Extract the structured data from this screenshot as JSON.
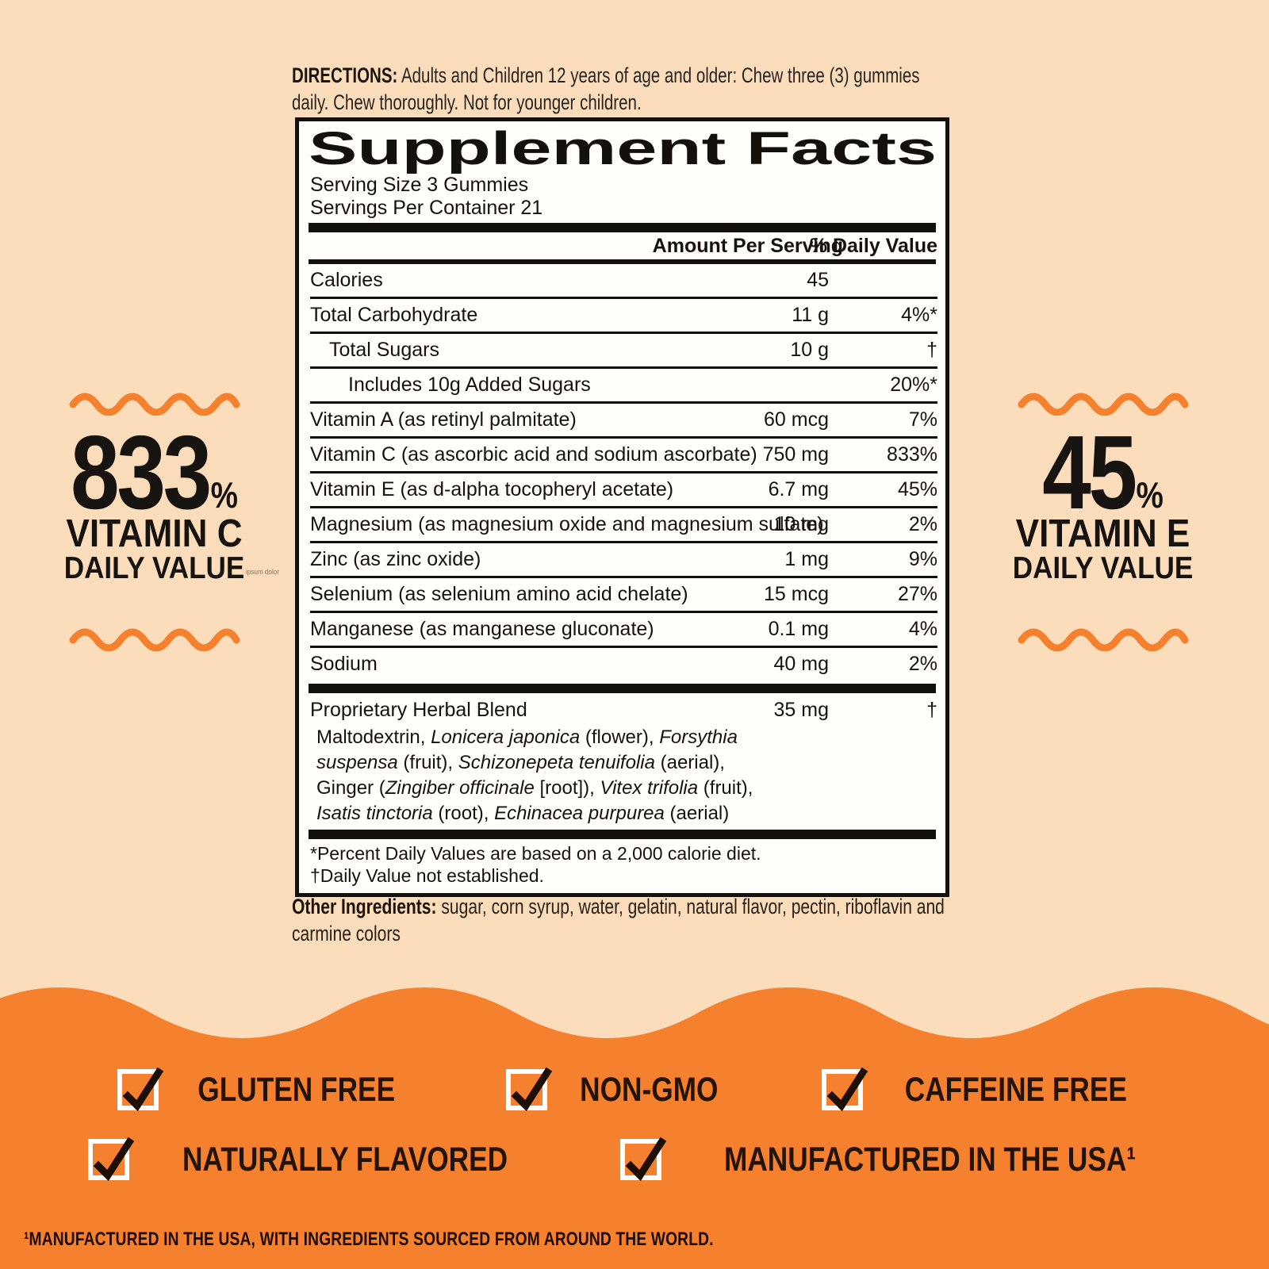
{
  "page": {
    "background_color": "#FBDDBB",
    "accent_color": "#F5812E",
    "ink_color": "#14100C"
  },
  "directions": {
    "label": "DIRECTIONS:",
    "text": " Adults and Children 12 years of age and older: Chew three (3) gummies daily. Chew thoroughly. Not for younger children."
  },
  "supplement_facts": {
    "title": "Supplement Facts",
    "serving_size": "Serving Size 3 Gummies",
    "servings_per_container": "Servings Per Container 21",
    "col_amount": "Amount Per Serving",
    "col_dv": "% Daily Value",
    "rows": [
      {
        "name": "Calories",
        "amount": "45",
        "dv": "",
        "indent": 0
      },
      {
        "name": "Total Carbohydrate",
        "amount": "11 g",
        "dv": "4%*",
        "indent": 0
      },
      {
        "name": "Total Sugars",
        "amount": "10 g",
        "dv": "†",
        "indent": 1
      },
      {
        "name": "Includes 10g Added Sugars",
        "amount": "",
        "dv": "20%*",
        "indent": 2
      },
      {
        "name": "Vitamin A (as retinyl palmitate)",
        "amount": "60 mcg",
        "dv": "7%",
        "indent": 0
      },
      {
        "name": "Vitamin C (as ascorbic acid and sodium ascorbate)",
        "amount": "750 mg",
        "dv": "833%",
        "indent": 0
      },
      {
        "name": "Vitamin E (as d-alpha tocopheryl acetate)",
        "amount": "6.7 mg",
        "dv": "45%",
        "indent": 0
      },
      {
        "name": "Magnesium (as magnesium oxide and magnesium sulfate)",
        "amount": "10 mg",
        "dv": "2%",
        "indent": 0
      },
      {
        "name": "Zinc (as zinc oxide)",
        "amount": "1 mg",
        "dv": "9%",
        "indent": 0
      },
      {
        "name": "Selenium (as selenium amino acid chelate)",
        "amount": "15 mcg",
        "dv": "27%",
        "indent": 0
      },
      {
        "name": "Manganese (as manganese gluconate)",
        "amount": "0.1 mg",
        "dv": "4%",
        "indent": 0
      },
      {
        "name": "Sodium",
        "amount": "40 mg",
        "dv": "2%",
        "indent": 0
      }
    ],
    "blend": {
      "name": "Proprietary Herbal Blend",
      "amount": "35 mg",
      "dv": "†",
      "ingredients": [
        {
          "t": "Maltodextrin, "
        },
        {
          "t": "Lonicera japonica",
          "i": true
        },
        {
          "t": " (flower), "
        },
        {
          "t": "Forsythia suspensa",
          "i": true
        },
        {
          "t": " (fruit), "
        },
        {
          "t": "Schizonepeta tenuifolia",
          "i": true
        },
        {
          "t": " (aerial), Ginger ("
        },
        {
          "t": "Zingiber officinale",
          "i": true
        },
        {
          "t": " [root]), "
        },
        {
          "t": "Vitex trifolia",
          "i": true
        },
        {
          "t": " (fruit), "
        },
        {
          "t": "Isatis tinctoria",
          "i": true
        },
        {
          "t": " (root), "
        },
        {
          "t": "Echinacea purpurea",
          "i": true
        },
        {
          "t": " (aerial)"
        }
      ]
    },
    "footnotes": [
      "*Percent Daily Values are based on a 2,000 calorie diet.",
      "†Daily Value not established."
    ]
  },
  "other_ingredients": {
    "label": "Other Ingredients:",
    "text": " sugar, corn syrup, water, gelatin, natural flavor, pectin, riboflavin and carmine colors"
  },
  "callout_left": {
    "value": "833",
    "pct": "%",
    "line1": "VITAMIN C",
    "line2": "DAILY VALUE",
    "watermark": "ipsum dolor"
  },
  "callout_right": {
    "value": "45",
    "pct": "%",
    "line1": "VITAMIN E",
    "line2": "DAILY VALUE"
  },
  "badges": {
    "row1": [
      "GLUTEN FREE",
      "NON-GMO",
      "CAFFEINE FREE"
    ],
    "row2": [
      "NATURALLY FLAVORED",
      "MANUFACTURED IN THE USA¹"
    ]
  },
  "bottom_footnote": "¹MANUFACTURED IN THE USA, WITH INGREDIENTS SOURCED FROM AROUND THE WORLD."
}
